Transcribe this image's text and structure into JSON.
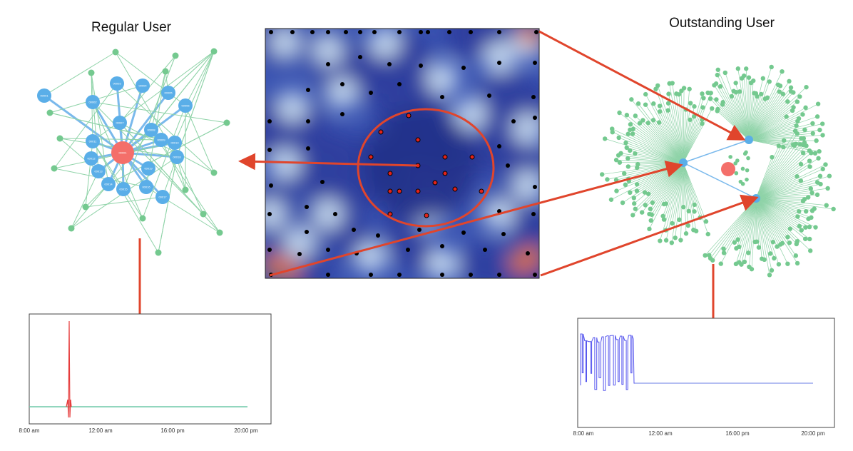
{
  "titles": {
    "regular": "Regular User",
    "outstanding": "Outstanding User"
  },
  "colors": {
    "arrow": "#e0452c",
    "hub_node": "#f46f6a",
    "blue_node": "#5aaee8",
    "green_node": "#74c98f",
    "edge_green": "#8fd3a8",
    "edge_blue": "#7ab9ec",
    "regular_spike": "#e63c3c",
    "regular_baseline": "#6fc9a9",
    "outstanding_signal": "#5555ee",
    "outstanding_baseline": "#9aa7ee",
    "heatmap_dark": "#2e3f9e",
    "heatmap_light": "#dbeefa",
    "heatmap_hot": "#e3733c"
  },
  "regular_network": {
    "hub_label": "00001",
    "blue_nodes": [
      {
        "label": "00001"
      },
      {
        "label": "00002"
      },
      {
        "label": "00003"
      },
      {
        "label": "00004"
      },
      {
        "label": "00005"
      },
      {
        "label": "00006"
      },
      {
        "label": "00007"
      },
      {
        "label": "00008"
      },
      {
        "label": "00009"
      },
      {
        "label": "00010"
      },
      {
        "label": "00011"
      },
      {
        "label": "00012"
      },
      {
        "label": "00013"
      },
      {
        "label": "00014"
      },
      {
        "label": "00015"
      },
      {
        "label": "00016"
      },
      {
        "label": "00017"
      },
      {
        "label": "00018"
      },
      {
        "label": "00019"
      }
    ]
  },
  "regular_timeseries": {
    "x_ticks": [
      "8:00 am",
      "12:00 am",
      "16:00 pm",
      "20:00 pm"
    ]
  },
  "outstanding_timeseries": {
    "x_ticks": [
      "8:00 am",
      "12:00 am",
      "16:00 pm",
      "20:00 pm"
    ]
  },
  "heatmap": {
    "dot_colors": {
      "normal": "#000000",
      "selected": "#e2231a"
    }
  }
}
